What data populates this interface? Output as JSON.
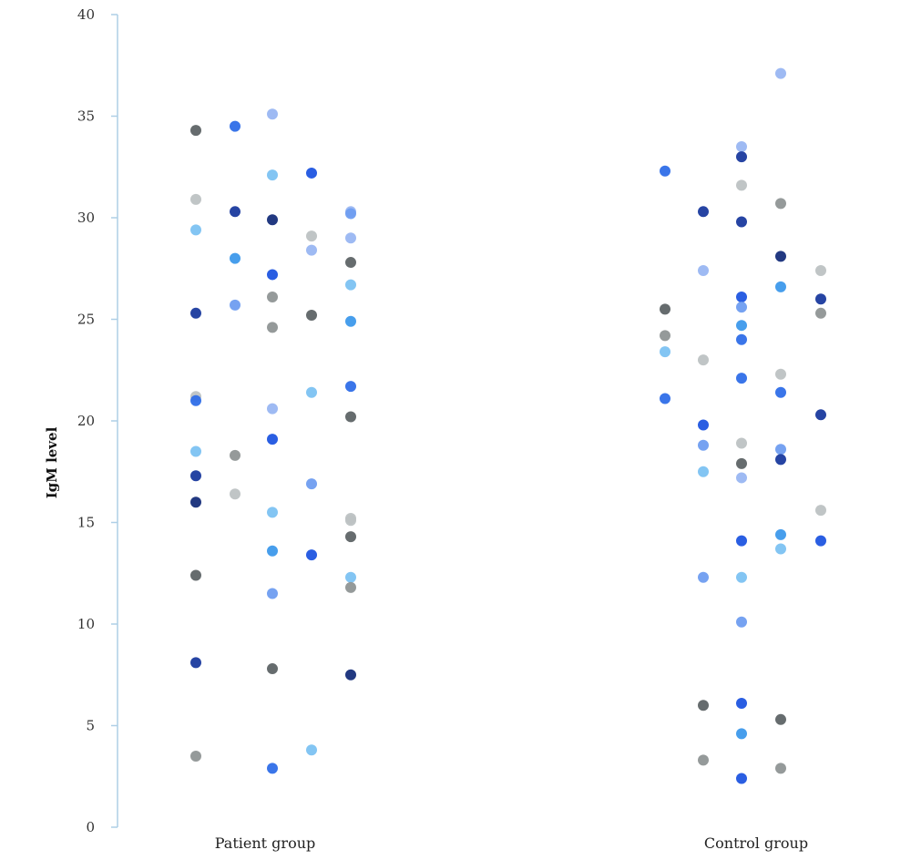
{
  "chart_data": {
    "type": "scatter",
    "ylabel": "IgM level",
    "xlabel": "",
    "ylim": [
      0,
      40
    ],
    "yticks": [
      0,
      5,
      10,
      15,
      20,
      25,
      30,
      35,
      40
    ],
    "ytick_labels": [
      "0",
      "5",
      "10",
      "15",
      "20",
      "25",
      "30",
      "35",
      "40"
    ],
    "categories": [
      "Patient group",
      "Control group"
    ],
    "grid": false,
    "legend": "none",
    "palette": {
      "dark-gray": "#5e6466",
      "mid-gray": "#8f9595",
      "light-gray": "#bdc2c3",
      "light-blue": "#7cc2f2",
      "sky-blue": "#3d99eb",
      "periwinkle": "#6f9df0",
      "pale-blue": "#99b6f2",
      "royal-blue": "#2f6ee8",
      "bright-blue": "#1f55e0",
      "navy": "#1a3a9e",
      "dark-navy": "#162e7a"
    },
    "groups": [
      {
        "name": "Patient group",
        "columns": [
          {
            "y": [
              34.3,
              30.9,
              29.4,
              25.3,
              21.2,
              21.0,
              18.5,
              17.3,
              16.0,
              12.4,
              8.1,
              3.5
            ],
            "c": [
              "dark-gray",
              "light-gray",
              "light-blue",
              "navy",
              "light-gray",
              "royal-blue",
              "light-blue",
              "navy",
              "dark-navy",
              "dark-gray",
              "navy",
              "mid-gray"
            ]
          },
          {
            "y": [
              34.5,
              30.3,
              28.0,
              25.7,
              18.3,
              16.4
            ],
            "c": [
              "royal-blue",
              "navy",
              "sky-blue",
              "periwinkle",
              "mid-gray",
              "light-gray"
            ]
          },
          {
            "y": [
              35.1,
              32.1,
              29.9,
              27.2,
              26.1,
              24.6,
              20.6,
              19.1,
              15.5,
              13.6,
              11.5,
              7.8,
              2.9
            ],
            "c": [
              "pale-blue",
              "light-blue",
              "dark-navy",
              "bright-blue",
              "mid-gray",
              "mid-gray",
              "pale-blue",
              "bright-blue",
              "light-blue",
              "sky-blue",
              "periwinkle",
              "dark-gray",
              "royal-blue"
            ]
          },
          {
            "y": [
              32.2,
              29.1,
              28.4,
              25.2,
              21.4,
              16.9,
              13.4,
              3.8
            ],
            "c": [
              "bright-blue",
              "light-gray",
              "pale-blue",
              "dark-gray",
              "light-blue",
              "periwinkle",
              "bright-blue",
              "light-blue"
            ]
          },
          {
            "y": [
              30.3,
              30.2,
              29.0,
              27.8,
              26.7,
              24.9,
              21.7,
              20.2,
              15.2,
              15.1,
              14.3,
              12.3,
              11.8,
              7.5
            ],
            "c": [
              "pale-blue",
              "periwinkle",
              "pale-blue",
              "dark-gray",
              "light-blue",
              "sky-blue",
              "royal-blue",
              "dark-gray",
              "light-gray",
              "light-gray",
              "dark-gray",
              "light-blue",
              "mid-gray",
              "dark-navy"
            ]
          }
        ]
      },
      {
        "name": "Control group",
        "columns": [
          {
            "y": [
              32.3,
              25.5,
              24.2,
              23.4,
              21.1
            ],
            "c": [
              "royal-blue",
              "dark-gray",
              "mid-gray",
              "light-blue",
              "royal-blue"
            ]
          },
          {
            "y": [
              30.3,
              27.4,
              23.0,
              19.8,
              18.8,
              17.5,
              12.3,
              6.0,
              3.3
            ],
            "c": [
              "navy",
              "pale-blue",
              "light-gray",
              "bright-blue",
              "periwinkle",
              "light-blue",
              "periwinkle",
              "dark-gray",
              "mid-gray"
            ]
          },
          {
            "y": [
              33.5,
              33.0,
              31.6,
              29.8,
              26.1,
              25.6,
              24.7,
              24.0,
              22.1,
              18.9,
              17.9,
              17.2,
              14.1,
              12.3,
              10.1,
              6.1,
              4.6,
              2.4
            ],
            "c": [
              "pale-blue",
              "navy",
              "light-gray",
              "navy",
              "bright-blue",
              "periwinkle",
              "sky-blue",
              "royal-blue",
              "royal-blue",
              "light-gray",
              "dark-gray",
              "pale-blue",
              "bright-blue",
              "light-blue",
              "periwinkle",
              "bright-blue",
              "sky-blue",
              "bright-blue"
            ]
          },
          {
            "y": [
              37.1,
              30.7,
              28.1,
              26.6,
              22.3,
              21.4,
              18.6,
              18.1,
              14.4,
              13.7,
              5.3,
              2.9
            ],
            "c": [
              "pale-blue",
              "mid-gray",
              "dark-navy",
              "sky-blue",
              "light-gray",
              "royal-blue",
              "periwinkle",
              "navy",
              "sky-blue",
              "light-blue",
              "dark-gray",
              "mid-gray"
            ]
          },
          {
            "y": [
              27.4,
              26.0,
              25.3,
              20.3,
              15.6,
              14.1
            ],
            "c": [
              "light-gray",
              "navy",
              "mid-gray",
              "navy",
              "light-gray",
              "bright-blue"
            ]
          }
        ]
      }
    ]
  }
}
